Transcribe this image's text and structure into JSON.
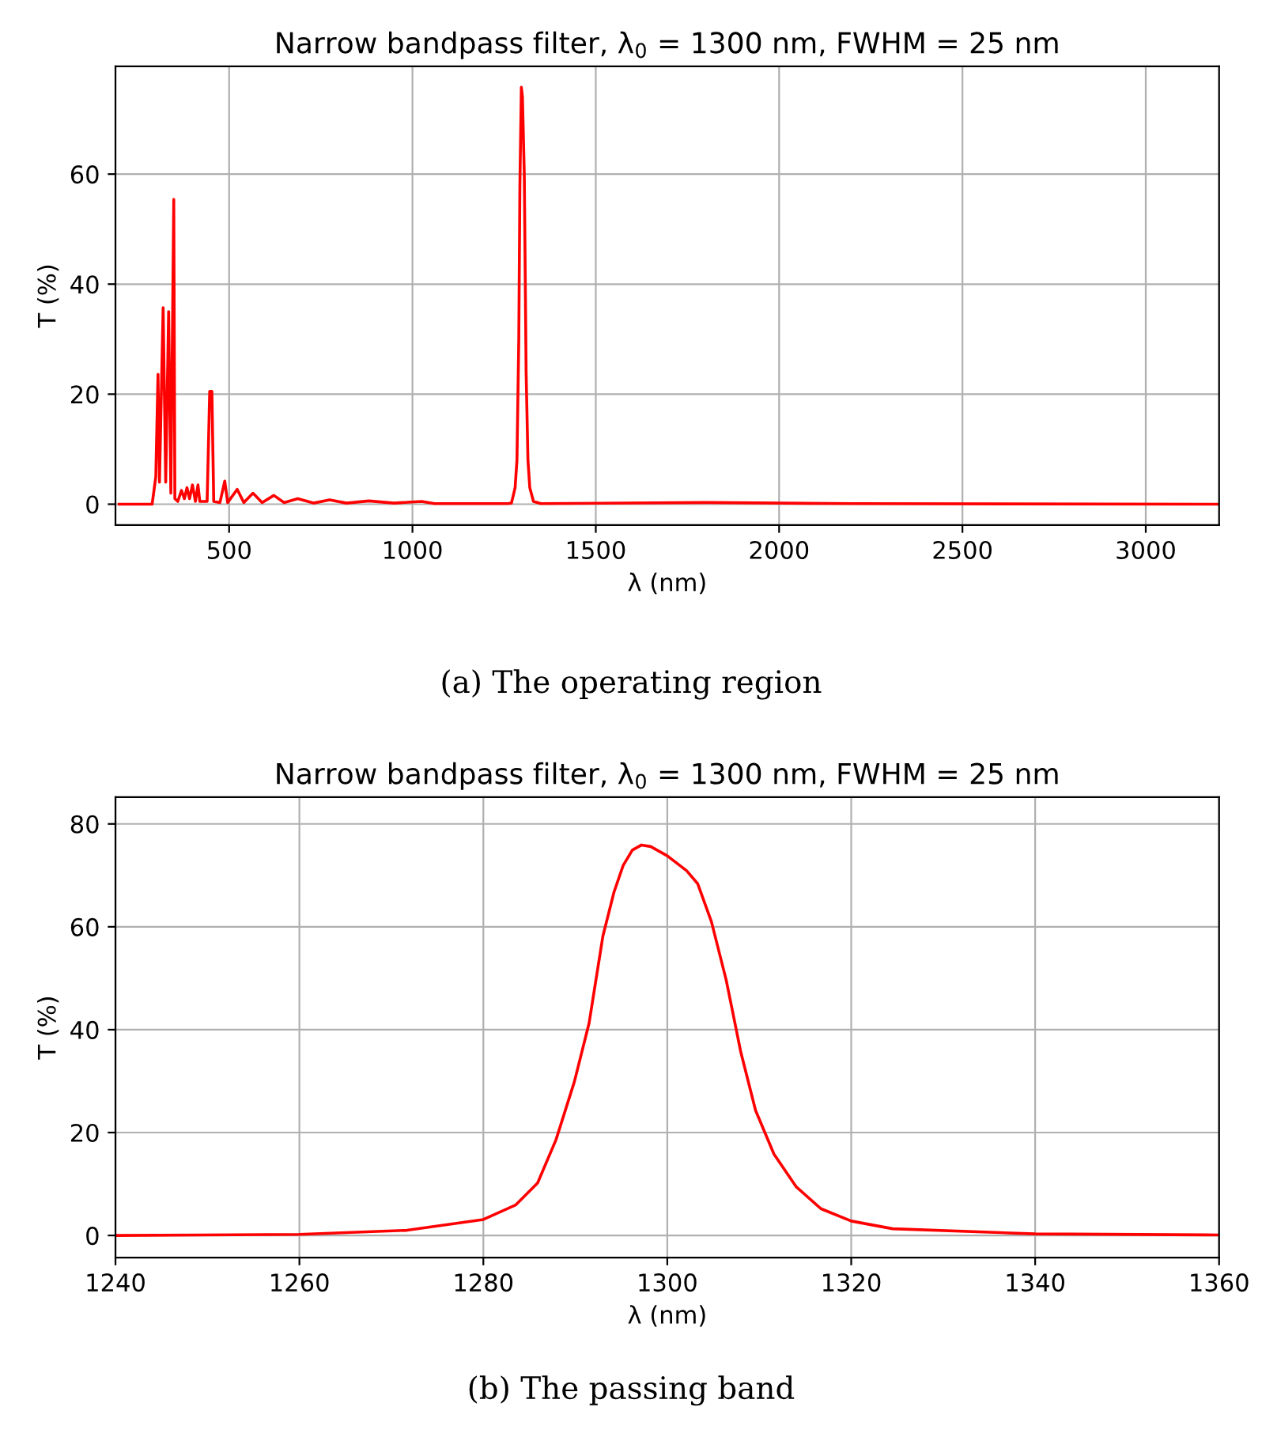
{
  "chart_data": [
    {
      "type": "line",
      "title": "Narrow bandpass filter, λ$_{0}$ = 1300 nm, FWHM = 25 nm",
      "xlabel": "λ (nm)",
      "ylabel": "T (%)",
      "x": [
        200,
        290,
        300,
        306,
        310,
        320,
        327,
        335,
        341,
        349,
        352,
        360,
        370,
        378,
        385,
        392,
        400,
        408,
        415,
        420,
        440,
        447,
        453,
        458,
        475,
        488,
        496,
        522,
        540,
        565,
        590,
        622,
        650,
        687,
        730,
        774,
        820,
        881,
        950,
        1025,
        1060,
        1260,
        1270,
        1280,
        1285,
        1290,
        1293,
        1297,
        1300,
        1305,
        1310,
        1315,
        1320,
        1330,
        1350,
        1800,
        2200,
        3200
      ],
      "series": [
        {
          "color": "#ff0000",
          "values": [
            0,
            0,
            5,
            23.6,
            4,
            35.7,
            4,
            35,
            2,
            55.4,
            1,
            0.5,
            2.5,
            1,
            3,
            1,
            3.5,
            0.5,
            3.5,
            0.5,
            0.5,
            20.5,
            20.5,
            0.5,
            0.3,
            4.2,
            0.3,
            2.7,
            0.3,
            2.0,
            0.3,
            1.6,
            0.3,
            1.0,
            0.2,
            0.8,
            0.2,
            0.6,
            0.2,
            0.5,
            0.1,
            0.1,
            0.2,
            3,
            8,
            30,
            58,
            75.8,
            74,
            60,
            24,
            8,
            3,
            0.5,
            0.1,
            0.3,
            0.1,
            0
          ]
        }
      ],
      "xlim": [
        190,
        3200
      ],
      "ylim": [
        -3.8,
        79.6
      ],
      "xticks": [
        500,
        1000,
        1500,
        2000,
        2500,
        3000
      ],
      "yticks": [
        0,
        20,
        40,
        60
      ],
      "grid": true,
      "annotations": [
        "(a) The operating region"
      ]
    },
    {
      "type": "line",
      "title": "Narrow bandpass filter, λ$_{0}$ = 1300 nm, FWHM = 25 nm",
      "xlabel": "λ (nm)",
      "ylabel": "T (%)",
      "x": [
        1240,
        1260,
        1271.7,
        1280,
        1283.5,
        1285.9,
        1287.9,
        1289.9,
        1291.5,
        1293.0,
        1294.2,
        1295.2,
        1296.2,
        1297.2,
        1298.2,
        1300,
        1302.1,
        1303.3,
        1304.8,
        1306.4,
        1308.0,
        1309.6,
        1311.6,
        1314.0,
        1316.7,
        1320,
        1324.5,
        1340,
        1360
      ],
      "series": [
        {
          "color": "#ff0000",
          "values": [
            0,
            0.2,
            1.0,
            3.1,
            5.9,
            10.2,
            18.6,
            29.9,
            41.3,
            58.2,
            66.7,
            71.9,
            74.9,
            75.9,
            75.6,
            73.8,
            70.9,
            68.4,
            61.0,
            49.7,
            35.6,
            24.3,
            15.8,
            9.5,
            5.2,
            2.8,
            1.3,
            0.3,
            0.1
          ]
        }
      ],
      "xlim": [
        1240,
        1360
      ],
      "ylim": [
        -4.3,
        85.2
      ],
      "xticks": [
        1240,
        1260,
        1280,
        1300,
        1320,
        1340,
        1360
      ],
      "yticks": [
        0,
        20,
        40,
        60,
        80
      ],
      "grid": true,
      "annotations": [
        "(b) The passing band"
      ]
    }
  ]
}
